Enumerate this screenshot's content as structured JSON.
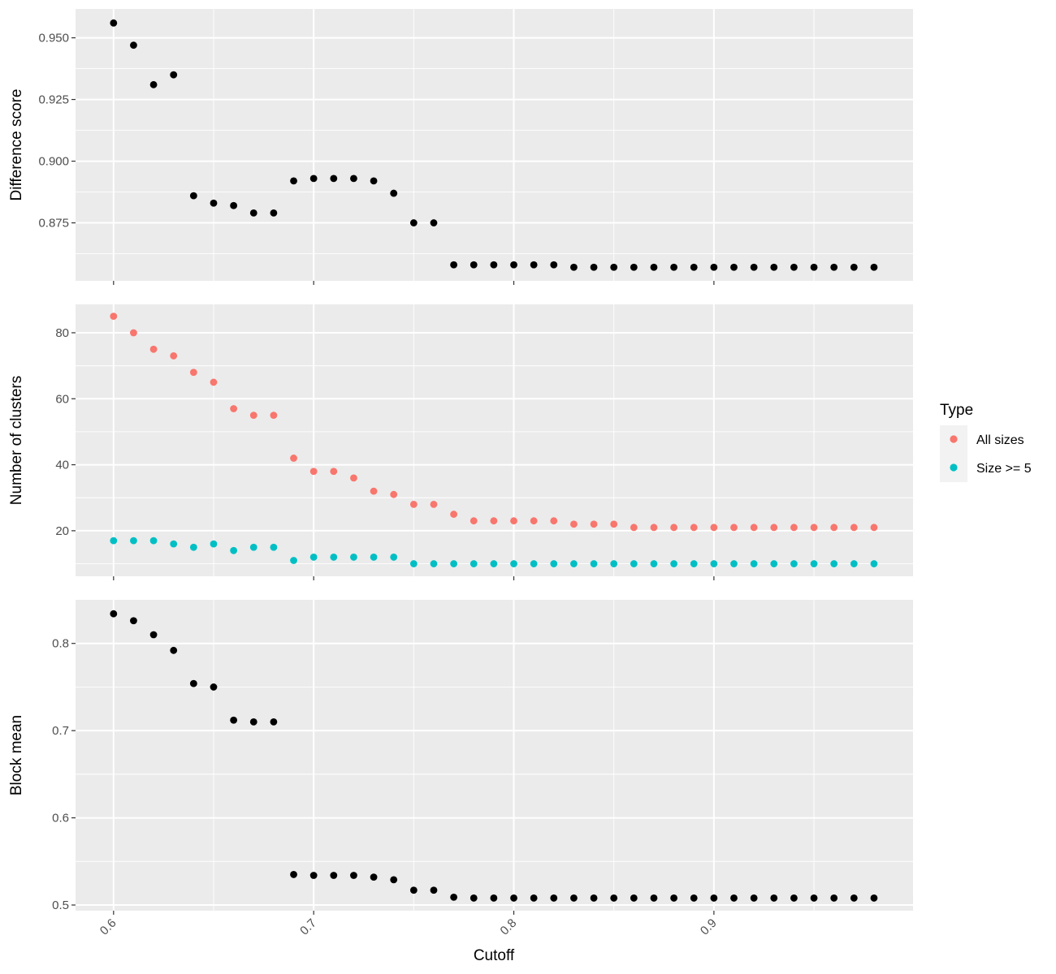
{
  "chart_data": {
    "type": "scatter",
    "xlabel": "Cutoff",
    "x": [
      0.6,
      0.61,
      0.62,
      0.63,
      0.64,
      0.65,
      0.66,
      0.67,
      0.68,
      0.69,
      0.7,
      0.71,
      0.72,
      0.73,
      0.74,
      0.75,
      0.76,
      0.77,
      0.78,
      0.79,
      0.8,
      0.81,
      0.82,
      0.83,
      0.84,
      0.85,
      0.86,
      0.87,
      0.88,
      0.89,
      0.9,
      0.91,
      0.92,
      0.93,
      0.94,
      0.95,
      0.96,
      0.97,
      0.98
    ],
    "x_ticks": [
      0.6,
      0.7,
      0.8,
      0.9
    ],
    "x_tick_labels": [
      "0.6",
      "0.7",
      "0.8",
      "0.9"
    ],
    "xlim": [
      0.581,
      0.9995
    ],
    "grid": true,
    "background_color": "#ebebeb",
    "grid_color": "#ffffff",
    "legend": {
      "title": "Type",
      "placement": "right",
      "entries": [
        {
          "label": "All sizes",
          "color": "#f8766d"
        },
        {
          "label": "Size >= 5",
          "color": "#00bfc4"
        }
      ]
    },
    "panels": [
      {
        "ylabel": "Difference score",
        "ylim": [
          0.8515,
          0.9617
        ],
        "y_ticks": [
          0.875,
          0.9,
          0.925,
          0.95
        ],
        "y_tick_labels": [
          "0.875",
          "0.900",
          "0.925",
          "0.950"
        ],
        "series": [
          {
            "color": "#000000",
            "values": [
              0.956,
              0.947,
              0.931,
              0.935,
              0.886,
              0.883,
              0.882,
              0.879,
              0.879,
              0.892,
              0.893,
              0.893,
              0.893,
              0.892,
              0.887,
              0.875,
              0.875,
              0.858,
              0.858,
              0.858,
              0.858,
              0.858,
              0.858,
              0.857,
              0.857,
              0.857,
              0.857,
              0.857,
              0.857,
              0.857,
              0.857,
              0.857,
              0.857,
              0.857,
              0.857,
              0.857,
              0.857,
              0.857,
              0.857
            ]
          }
        ]
      },
      {
        "ylabel": "Number of clusters",
        "ylim": [
          6.2,
          88.6
        ],
        "y_ticks": [
          20,
          40,
          60,
          80
        ],
        "y_tick_labels": [
          "20",
          "40",
          "60",
          "80"
        ],
        "series": [
          {
            "name": "All sizes",
            "color": "#f8766d",
            "values": [
              85,
              80,
              75,
              73,
              68,
              65,
              57,
              55,
              55,
              42,
              38,
              38,
              36,
              32,
              31,
              28,
              28,
              25,
              23,
              23,
              23,
              23,
              23,
              22,
              22,
              22,
              21,
              21,
              21,
              21,
              21,
              21,
              21,
              21,
              21,
              21,
              21,
              21,
              21
            ]
          },
          {
            "name": "Size >= 5",
            "color": "#00bfc4",
            "values": [
              17,
              17,
              17,
              16,
              15,
              16,
              14,
              15,
              15,
              11,
              12,
              12,
              12,
              12,
              12,
              10,
              10,
              10,
              10,
              10,
              10,
              10,
              10,
              10,
              10,
              10,
              10,
              10,
              10,
              10,
              10,
              10,
              10,
              10,
              10,
              10,
              10,
              10,
              10
            ]
          }
        ]
      },
      {
        "ylabel": "Block mean",
        "ylim": [
          0.4935,
          0.85
        ],
        "y_ticks": [
          0.5,
          0.6,
          0.7,
          0.8
        ],
        "y_tick_labels": [
          "0.5",
          "0.6",
          "0.7",
          "0.8"
        ],
        "series": [
          {
            "color": "#000000",
            "values": [
              0.834,
              0.826,
              0.81,
              0.792,
              0.754,
              0.75,
              0.712,
              0.71,
              0.71,
              0.535,
              0.534,
              0.534,
              0.534,
              0.532,
              0.529,
              0.517,
              0.517,
              0.509,
              0.508,
              0.508,
              0.508,
              0.508,
              0.508,
              0.508,
              0.508,
              0.508,
              0.508,
              0.508,
              0.508,
              0.508,
              0.508,
              0.508,
              0.508,
              0.508,
              0.508,
              0.508,
              0.508,
              0.508,
              0.508
            ]
          }
        ]
      }
    ]
  }
}
